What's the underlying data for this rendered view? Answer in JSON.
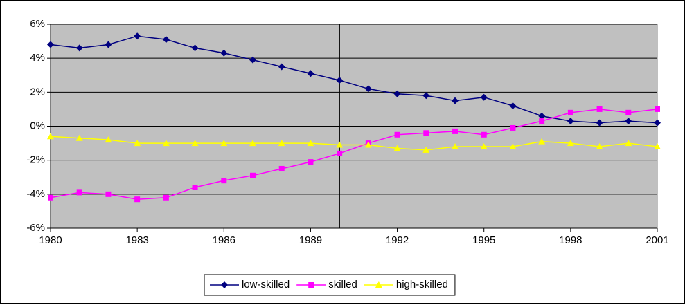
{
  "chart_data": {
    "type": "line",
    "x": [
      1980,
      1981,
      1982,
      1983,
      1984,
      1985,
      1986,
      1987,
      1988,
      1989,
      1990,
      1991,
      1992,
      1993,
      1994,
      1995,
      1996,
      1997,
      1998,
      1999,
      2000,
      2001
    ],
    "series": [
      {
        "name": "low-skilled",
        "color": "#000080",
        "marker": "diamond",
        "values": [
          4.8,
          4.6,
          4.8,
          5.3,
          5.1,
          4.6,
          4.3,
          3.9,
          3.5,
          3.1,
          2.7,
          2.2,
          1.9,
          1.8,
          1.5,
          1.7,
          1.2,
          0.6,
          0.3,
          0.2,
          0.3,
          0.2
        ]
      },
      {
        "name": "skilled",
        "color": "#ff00ff",
        "marker": "square",
        "values": [
          -4.2,
          -3.9,
          -4.0,
          -4.3,
          -4.2,
          -3.6,
          -3.2,
          -2.9,
          -2.5,
          -2.1,
          -1.6,
          -1.0,
          -0.5,
          -0.4,
          -0.3,
          -0.5,
          -0.1,
          0.3,
          0.8,
          1.0,
          0.8,
          1.0
        ]
      },
      {
        "name": "high-skilled",
        "color": "#ffff00",
        "marker": "triangle",
        "values": [
          -0.6,
          -0.7,
          -0.8,
          -1.0,
          -1.0,
          -1.0,
          -1.0,
          -1.0,
          -1.0,
          -1.0,
          -1.1,
          -1.1,
          -1.3,
          -1.4,
          -1.2,
          -1.2,
          -1.2,
          -0.9,
          -1.0,
          -1.2,
          -1.0,
          -1.2
        ]
      }
    ],
    "xlim": [
      1980,
      2001
    ],
    "xticks": [
      1980,
      1983,
      1986,
      1989,
      1992,
      1995,
      1998,
      2001
    ],
    "ylim": [
      -6,
      6
    ],
    "yticks": [
      {
        "value": -6,
        "label": "-6%"
      },
      {
        "value": -4,
        "label": "-4%"
      },
      {
        "value": -2,
        "label": "-2%"
      },
      {
        "value": 0,
        "label": "0%"
      },
      {
        "value": 2,
        "label": "2%"
      },
      {
        "value": 4,
        "label": "4%"
      },
      {
        "value": 6,
        "label": "6%"
      }
    ],
    "vline": 1990,
    "grid": true,
    "legend": "bottom",
    "plot_background": "#c0c0c0"
  }
}
